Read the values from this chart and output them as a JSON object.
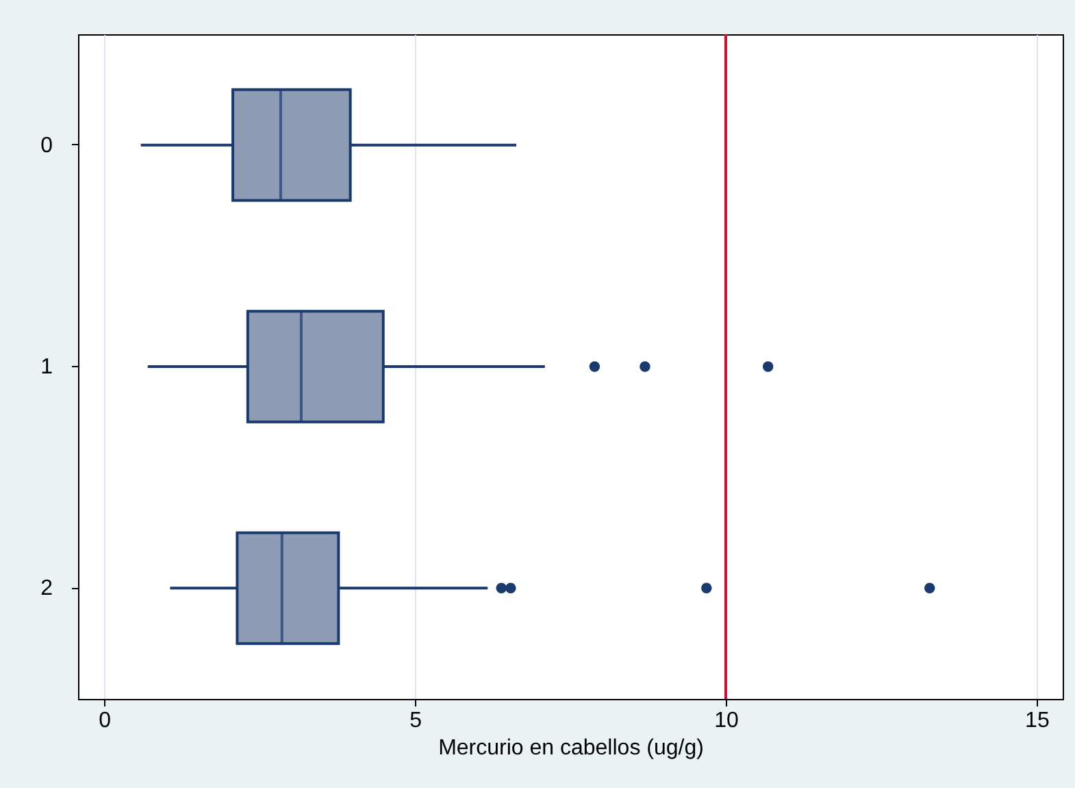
{
  "chart_data": {
    "type": "box",
    "orientation": "horizontal",
    "xlabel": "Mercurio en cabellos (ug/g)",
    "categories": [
      "0",
      "1",
      "2"
    ],
    "series": [
      {
        "color": "#8e9bb5",
        "boxes": [
          {
            "low": 0.59,
            "q1": 2.07,
            "median": 2.84,
            "q3": 3.96,
            "high": 6.63
          },
          {
            "low": 0.7,
            "q1": 2.31,
            "median": 3.17,
            "q3": 4.49,
            "high": 7.09,
            "outliers": [
              7.89,
              8.7,
              10.68
            ]
          },
          {
            "low": 1.06,
            "q1": 2.14,
            "median": 2.86,
            "q3": 3.77,
            "high": 6.17,
            "outliers": [
              6.39,
              6.54,
              9.69,
              13.28
            ]
          }
        ]
      }
    ],
    "xlim": [
      -0.42,
      15.42
    ],
    "xticks": [
      0,
      5,
      10,
      15
    ],
    "grid": "x",
    "ref_lines": [
      {
        "axis": "x",
        "value": 10,
        "color": "#c8102e"
      }
    ]
  }
}
